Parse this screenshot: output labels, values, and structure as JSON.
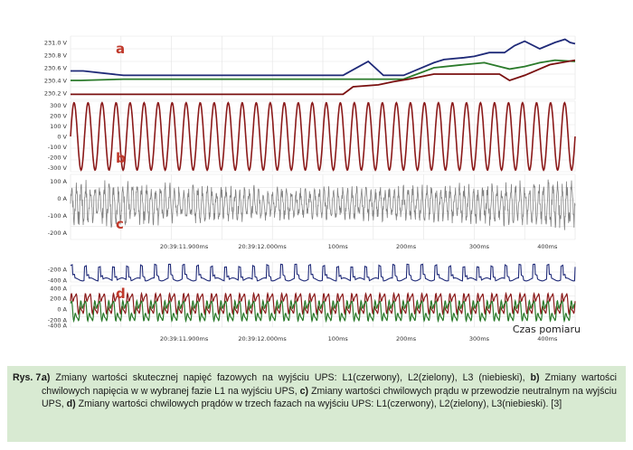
{
  "chart_data": [
    {
      "type": "line",
      "panel_letter": "a",
      "yticks": [
        "231.0 V",
        "230.8 V",
        "230.6 V",
        "230.4 V",
        "230.2 V"
      ],
      "ylim": [
        230.1,
        231.1
      ],
      "grid": true,
      "series": [
        {
          "color": "#1f2a78",
          "x": [
            0,
            0.025,
            0.105,
            0.54,
            0.59,
            0.62,
            0.66,
            0.72,
            0.74,
            0.78,
            0.8,
            0.83,
            0.86,
            0.88,
            0.9,
            0.93,
            0.96,
            0.98,
            0.99,
            1.0
          ],
          "values": [
            230.55,
            230.55,
            230.48,
            230.48,
            230.7,
            230.48,
            230.48,
            230.68,
            230.73,
            230.76,
            230.78,
            230.84,
            230.84,
            230.95,
            231.02,
            230.9,
            231.0,
            231.05,
            231.0,
            230.98
          ]
        },
        {
          "color": "#2a7a2a",
          "x": [
            0,
            0.02,
            0.105,
            0.54,
            0.6,
            0.62,
            0.66,
            0.72,
            0.78,
            0.82,
            0.85,
            0.87,
            0.9,
            0.93,
            0.96,
            1.0
          ],
          "values": [
            230.4,
            230.4,
            230.42,
            230.42,
            230.42,
            230.42,
            230.42,
            230.6,
            230.65,
            230.68,
            230.62,
            230.58,
            230.62,
            230.68,
            230.72,
            230.7
          ]
        },
        {
          "color": "#7a1010",
          "x": [
            0,
            0.095,
            0.54,
            0.56,
            0.61,
            0.64,
            0.67,
            0.72,
            0.85,
            0.87,
            0.9,
            0.95,
            1.0
          ],
          "values": [
            230.18,
            230.18,
            230.18,
            230.3,
            230.33,
            230.38,
            230.42,
            230.5,
            230.5,
            230.4,
            230.48,
            230.65,
            230.72
          ]
        }
      ]
    },
    {
      "type": "line",
      "panel_letter": "b",
      "yticks": [
        "300 V",
        "200 V",
        "100 V",
        "0 V",
        "-100 V",
        "-200 V",
        "-300 V"
      ],
      "ylim": [
        -340,
        340
      ],
      "grid": true,
      "series": [
        {
          "color": "#8b1a1a",
          "waveform": "sine",
          "amplitude": 325,
          "cycles": 36
        }
      ]
    },
    {
      "type": "line",
      "panel_letter": "c",
      "yticks": [
        "100 A",
        "0 A",
        "-100 A",
        "-200 A"
      ],
      "ylim": [
        -240,
        140
      ],
      "grid": true,
      "series": [
        {
          "color": "#808080",
          "waveform": "noisy",
          "amplitude": 140,
          "cycles": 36
        }
      ]
    },
    {
      "type": "line",
      "panel_letter": "d",
      "yticks": [
        "-200 A",
        "-400 A",
        "400 A",
        "200 A",
        "0 A",
        "-200 A",
        "-400 A"
      ],
      "grid": true,
      "x_tick_labels": [
        "20:39:11.900ms",
        "20:39:12.000ms",
        "100ms",
        "200ms",
        "300ms",
        "400ms"
      ],
      "xlabel": "Czas pomiaru",
      "series": [
        {
          "color": "#1f2a78",
          "waveform": "spiky"
        },
        {
          "color": "#8b1a1a",
          "waveform": "periodic"
        },
        {
          "color": "#2a7a2a",
          "waveform": "periodic"
        }
      ]
    }
  ],
  "caption": {
    "label": "Rys. 7.",
    "part_a_letter": "a)",
    "part_a_text": " Zmiany wartości skutecznej napięć fazowych na wyjściu UPS: L1(czerwony), L2(zielony), L3 (niebieski), ",
    "part_b_letter": "b)",
    "part_b_text": " Zmiany wartości chwilowych napięcia w w wybranej fazie L1 na wyjściu UPS, ",
    "part_c_letter": "c)",
    "part_c_text": " Zmiany wartości chwilowych prądu w przewodzie neutralnym na wyjściu UPS, ",
    "part_d_letter": "d)",
    "part_d_text": " Zmiany wartości chwilowych prądów w trzech fazach na wyjściu UPS: L1(czerwony), L2(zielony), L3(niebieski). [3]"
  },
  "colors": {
    "panel_letter": "#c0392b",
    "grid": "#e3e3e3",
    "axis_text": "#333333",
    "caption_background": "#d8ead2"
  }
}
